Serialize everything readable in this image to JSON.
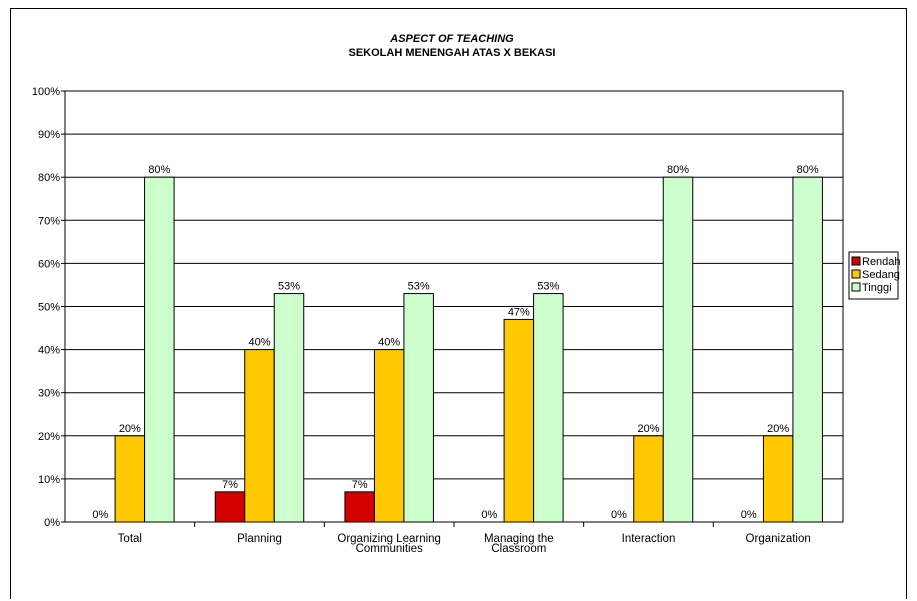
{
  "chart_data": {
    "type": "bar",
    "title": "ASPECT OF TEACHING",
    "subtitle": "SEKOLAH MENENGAH ATAS X BEKASI",
    "categories": [
      [
        "Total"
      ],
      [
        "Planning"
      ],
      [
        "Organizing Learning",
        "Communities"
      ],
      [
        "Managing the",
        "Classroom"
      ],
      [
        "Interaction"
      ],
      [
        "Organization"
      ]
    ],
    "series": [
      {
        "name": "Rendah",
        "color": "#d40000",
        "values": [
          0,
          7,
          7,
          0,
          0,
          0
        ],
        "labels": [
          "0%",
          "7%",
          "7%",
          "0%",
          "0%",
          "0%"
        ]
      },
      {
        "name": "Sedang",
        "color": "#ffc800",
        "values": [
          20,
          40,
          40,
          47,
          20,
          20
        ],
        "labels": [
          "20%",
          "40%",
          "40%",
          "47%",
          "20%",
          "20%"
        ]
      },
      {
        "name": "Tinggi",
        "color": "#ccffcc",
        "values": [
          80,
          53,
          53,
          53,
          80,
          80
        ],
        "labels": [
          "80%",
          "53%",
          "53%",
          "53%",
          "80%",
          "80%"
        ]
      }
    ],
    "show_zero_bars": [
      false,
      true,
      true,
      false,
      false,
      false
    ],
    "ylim": [
      0,
      100
    ],
    "yticks": [
      "0%",
      "10%",
      "20%",
      "30%",
      "40%",
      "50%",
      "60%",
      "70%",
      "80%",
      "90%",
      "100%"
    ],
    "grid": true,
    "legend_position": "right"
  }
}
